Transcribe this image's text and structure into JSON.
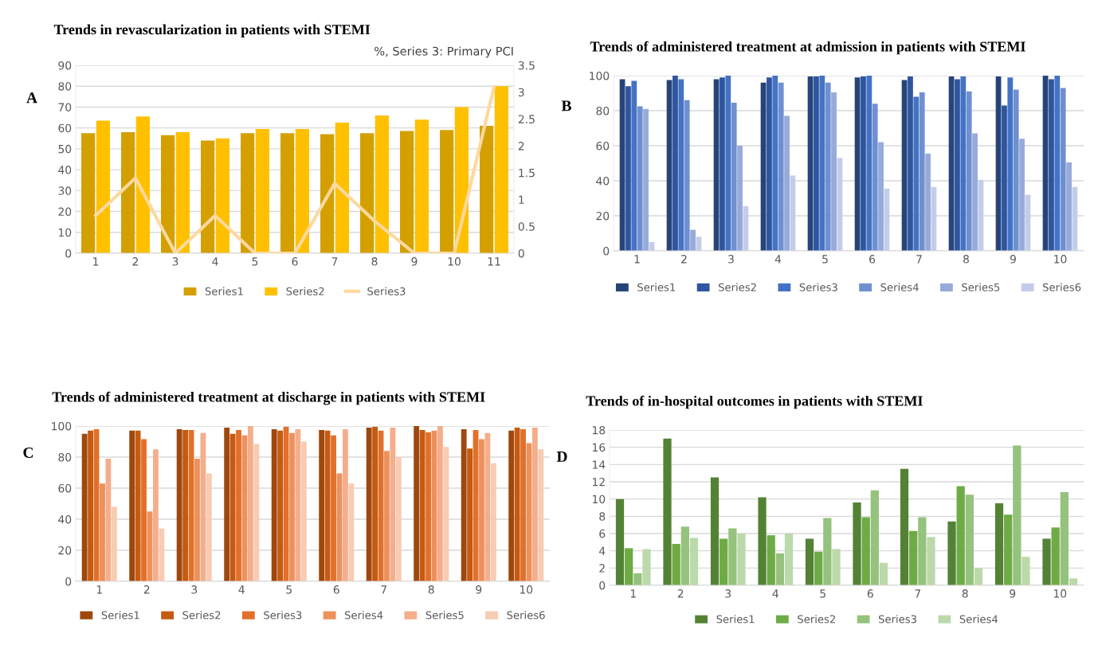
{
  "chart_data": [
    {
      "type": "bar",
      "title": "Trends in revascularization in patients with STEMI",
      "annotations": [
        "A"
      ],
      "y2label": "%, Series 3: Primary PCI",
      "categories": [
        "1",
        "2",
        "3",
        "4",
        "5",
        "6",
        "7",
        "8",
        "9",
        "10",
        "11"
      ],
      "series": [
        {
          "name": "Series1",
          "color": "#d4a000",
          "values": [
            57.5,
            58,
            56.5,
            54,
            57.5,
            57.5,
            57,
            57.5,
            58.5,
            59,
            61
          ]
        },
        {
          "name": "Series2",
          "color": "#ffc000",
          "values": [
            63.5,
            65.5,
            58,
            55,
            59.5,
            59.5,
            62.5,
            66,
            64,
            70,
            80
          ]
        },
        {
          "name": "Series3",
          "color": "#fdd9a0",
          "type": "line",
          "axis": "y2",
          "values": [
            0.7,
            1.4,
            0,
            0.7,
            0,
            0,
            1.3,
            0.6,
            0,
            0,
            3.1
          ]
        }
      ],
      "ylim": [
        0,
        90
      ],
      "yticks": [
        0,
        10,
        20,
        30,
        40,
        50,
        60,
        70,
        80,
        90
      ],
      "y2lim": [
        0,
        3.5
      ],
      "y2ticks": [
        0,
        0.5,
        1,
        1.5,
        2,
        2.5,
        3,
        3.5
      ],
      "grid": "y",
      "legend": "bottom"
    },
    {
      "type": "bar",
      "title": "Trends of administered treatment at admission in patients with STEMI",
      "annotations": [
        "B"
      ],
      "categories": [
        "1",
        "2",
        "3",
        "4",
        "5",
        "6",
        "7",
        "8",
        "9",
        "10"
      ],
      "series": [
        {
          "name": "Series1",
          "color": "#264478",
          "values": [
            98,
            97.5,
            98,
            96,
            99.5,
            99,
            97.5,
            99.5,
            99.5,
            100
          ]
        },
        {
          "name": "Series2",
          "color": "#2f55a0",
          "values": [
            94,
            100,
            99,
            99,
            99.5,
            99.5,
            99.5,
            98,
            83,
            98
          ]
        },
        {
          "name": "Series3",
          "color": "#4472c4",
          "values": [
            97,
            98,
            100,
            100,
            100,
            100,
            88,
            99.5,
            99,
            100
          ]
        },
        {
          "name": "Series4",
          "color": "#6f8fd0",
          "values": [
            82.5,
            86,
            84.5,
            96,
            96,
            84,
            90.5,
            91,
            92,
            93
          ]
        },
        {
          "name": "Series5",
          "color": "#97abdb",
          "values": [
            81,
            12,
            60,
            77,
            90.5,
            62,
            55.5,
            67,
            64,
            50.5
          ]
        },
        {
          "name": "Series6",
          "color": "#c3cdea",
          "values": [
            5,
            8,
            25.5,
            43,
            53,
            35.5,
            36.5,
            40.5,
            32,
            36.5
          ]
        }
      ],
      "ylim": [
        0,
        100
      ],
      "yticks": [
        0,
        20,
        40,
        60,
        80,
        100
      ],
      "grid": "y",
      "legend": "bottom"
    },
    {
      "type": "bar",
      "title": "Trends of administered treatment at discharge in patients with STEMI",
      "annotations": [
        "C"
      ],
      "categories": [
        "1",
        "2",
        "3",
        "4",
        "5",
        "6",
        "7",
        "8",
        "9",
        "10"
      ],
      "series": [
        {
          "name": "Series1",
          "color": "#9e480e",
          "values": [
            95,
            97,
            98,
            99,
            98,
            97.5,
            99,
            100,
            98,
            97
          ]
        },
        {
          "name": "Series2",
          "color": "#c55a11",
          "values": [
            97,
            97,
            97.5,
            95,
            97,
            97,
            99.5,
            97.5,
            85.5,
            99
          ]
        },
        {
          "name": "Series3",
          "color": "#e2702a",
          "values": [
            98,
            91.5,
            97.5,
            97.5,
            99.5,
            94,
            97,
            96,
            97.5,
            98
          ]
        },
        {
          "name": "Series4",
          "color": "#ed915c",
          "values": [
            63,
            45,
            79,
            94,
            95.5,
            69.5,
            84,
            97,
            91.5,
            89
          ]
        },
        {
          "name": "Series5",
          "color": "#f4ae8c",
          "values": [
            79,
            85,
            95.5,
            100,
            98,
            98,
            99,
            100,
            95.5,
            99
          ]
        },
        {
          "name": "Series6",
          "color": "#f8cbb3",
          "values": [
            48,
            34,
            69.5,
            88.5,
            90,
            63,
            80,
            86.5,
            76,
            85
          ]
        }
      ],
      "ylim": [
        0,
        100
      ],
      "yticks": [
        0,
        20,
        40,
        60,
        80,
        100
      ],
      "grid": "y",
      "legend": "bottom"
    },
    {
      "type": "bar",
      "title": "Trends of in-hospital outcomes in patients with STEMI",
      "annotations": [
        "D"
      ],
      "categories": [
        "1",
        "2",
        "3",
        "4",
        "5",
        "6",
        "7",
        "8",
        "9",
        "10"
      ],
      "series": [
        {
          "name": "Series1",
          "color": "#548235",
          "values": [
            10,
            17,
            12.5,
            10.2,
            5.4,
            9.6,
            13.5,
            7.4,
            9.5,
            5.4
          ]
        },
        {
          "name": "Series2",
          "color": "#6eab45",
          "values": [
            4.3,
            4.8,
            5.4,
            5.8,
            3.9,
            7.9,
            6.3,
            11.5,
            8.2,
            6.7
          ]
        },
        {
          "name": "Series3",
          "color": "#95c27d",
          "values": [
            1.4,
            6.8,
            6.6,
            3.7,
            7.8,
            11,
            7.9,
            10.5,
            16.2,
            10.8
          ]
        },
        {
          "name": "Series4",
          "color": "#bcd9ab",
          "values": [
            4.2,
            5.5,
            6,
            6,
            4.2,
            2.6,
            5.6,
            2,
            3.3,
            0.8
          ]
        }
      ],
      "ylim": [
        0,
        18
      ],
      "yticks": [
        0,
        2,
        4,
        6,
        8,
        10,
        12,
        14,
        16,
        18
      ],
      "grid": "y",
      "legend": "bottom"
    }
  ]
}
